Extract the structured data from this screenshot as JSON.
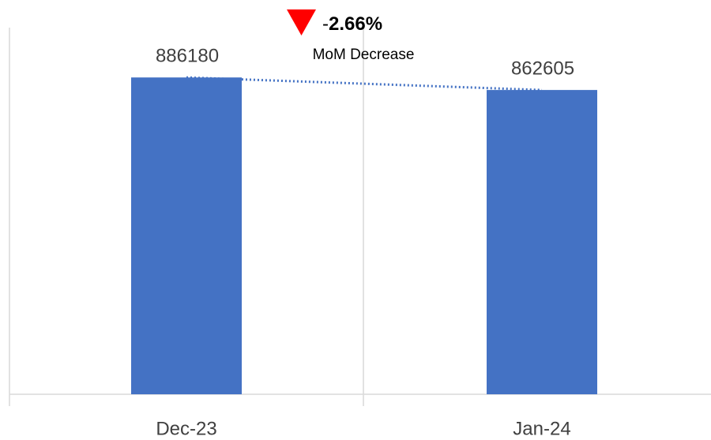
{
  "chart_data": {
    "type": "bar",
    "categories": [
      "Dec-23",
      "Jan-24"
    ],
    "values": [
      886180,
      862605
    ],
    "color": "#4472c4",
    "ylim": [
      290000,
      980000
    ],
    "trend_line": true,
    "annotation": {
      "sign": "-",
      "value": "2.66%",
      "label": "MoM Decrease"
    }
  }
}
